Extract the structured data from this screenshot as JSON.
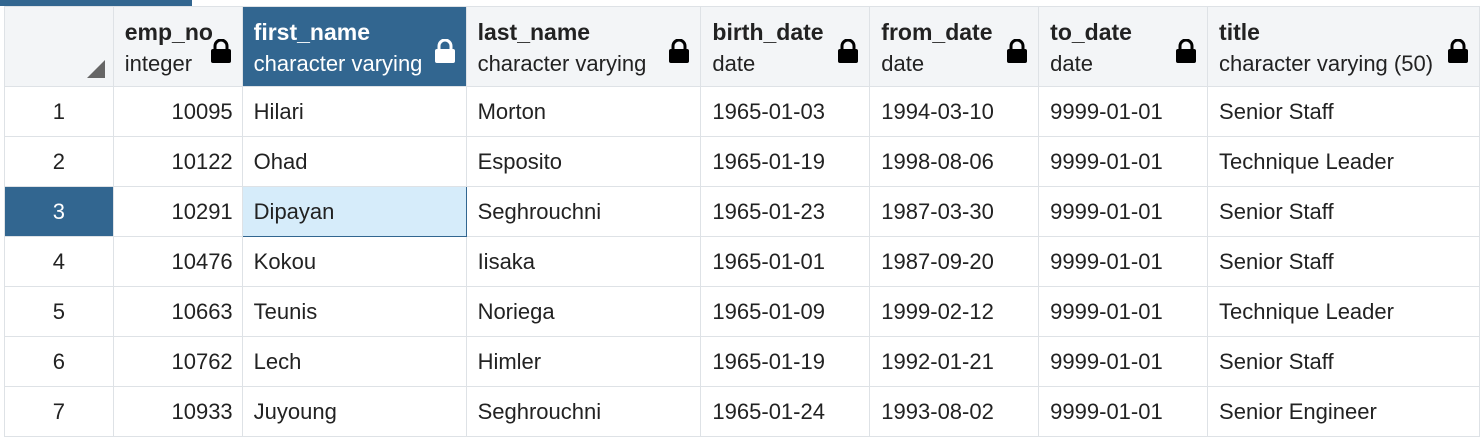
{
  "columns": [
    {
      "name": "emp_no",
      "type": "integer",
      "locked": true,
      "icon": "lock-icon"
    },
    {
      "name": "first_name",
      "type": "character varying",
      "locked": true,
      "selected": true,
      "icon": "lock-icon"
    },
    {
      "name": "last_name",
      "type": "character varying",
      "locked": true,
      "icon": "lock-icon"
    },
    {
      "name": "birth_date",
      "type": "date",
      "locked": true,
      "icon": "lock-icon"
    },
    {
      "name": "from_date",
      "type": "date",
      "locked": true,
      "icon": "lock-icon"
    },
    {
      "name": "to_date",
      "type": "date",
      "locked": true,
      "icon": "lock-icon"
    },
    {
      "name": "title",
      "type": "character varying (50)",
      "locked": true,
      "icon": "lock-icon"
    }
  ],
  "rows": [
    {
      "num": "1",
      "emp_no": "10095",
      "first_name": "Hilari",
      "last_name": "Morton",
      "birth_date": "1965-01-03",
      "from_date": "1994-03-10",
      "to_date": "9999-01-01",
      "title": "Senior Staff"
    },
    {
      "num": "2",
      "emp_no": "10122",
      "first_name": "Ohad",
      "last_name": "Esposito",
      "birth_date": "1965-01-19",
      "from_date": "1998-08-06",
      "to_date": "9999-01-01",
      "title": "Technique Leader"
    },
    {
      "num": "3",
      "emp_no": "10291",
      "first_name": "Dipayan",
      "last_name": "Seghrouchni",
      "birth_date": "1965-01-23",
      "from_date": "1987-03-30",
      "to_date": "9999-01-01",
      "title": "Senior Staff"
    },
    {
      "num": "4",
      "emp_no": "10476",
      "first_name": "Kokou",
      "last_name": "Iisaka",
      "birth_date": "1965-01-01",
      "from_date": "1987-09-20",
      "to_date": "9999-01-01",
      "title": "Senior Staff"
    },
    {
      "num": "5",
      "emp_no": "10663",
      "first_name": "Teunis",
      "last_name": "Noriega",
      "birth_date": "1965-01-09",
      "from_date": "1999-02-12",
      "to_date": "9999-01-01",
      "title": "Technique Leader"
    },
    {
      "num": "6",
      "emp_no": "10762",
      "first_name": "Lech",
      "last_name": "Himler",
      "birth_date": "1965-01-19",
      "from_date": "1992-01-21",
      "to_date": "9999-01-01",
      "title": "Senior Staff"
    },
    {
      "num": "7",
      "emp_no": "10933",
      "first_name": "Juyoung",
      "last_name": "Seghrouchni",
      "birth_date": "1965-01-24",
      "from_date": "1993-08-02",
      "to_date": "9999-01-01",
      "title": "Senior Engineer"
    }
  ],
  "selection": {
    "row_index": 2,
    "column": "first_name"
  },
  "colors": {
    "accent": "#326690",
    "selected_cell": "#d6ecfa",
    "grid_line": "#dee2e6",
    "header_bg": "#f3f5f7"
  },
  "icons": {
    "corner": "select-all-triangle-icon",
    "column": "lock-icon"
  }
}
